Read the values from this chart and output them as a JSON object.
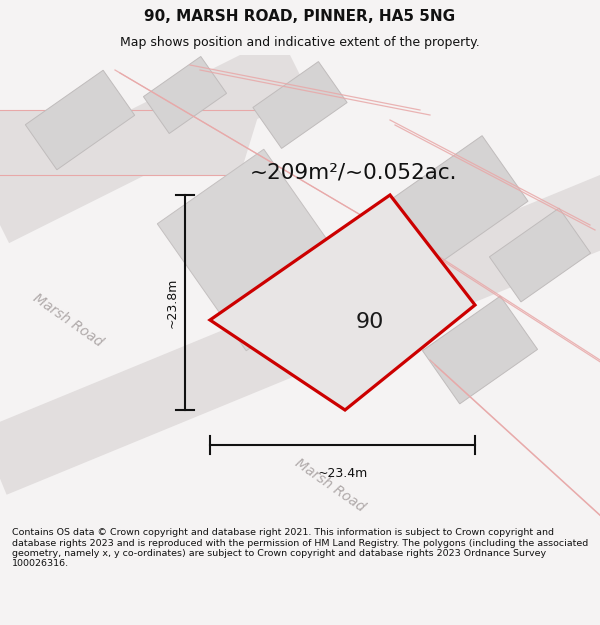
{
  "title": "90, MARSH ROAD, PINNER, HA5 5NG",
  "subtitle": "Map shows position and indicative extent of the property.",
  "area_text": "~209m²/~0.052ac.",
  "property_number": "90",
  "width_label": "~23.4m",
  "height_label": "~23.8m",
  "footer_text": "Contains OS data © Crown copyright and database right 2021. This information is subject to Crown copyright and database rights 2023 and is reproduced with the permission of HM Land Registry. The polygons (including the associated geometry, namely x, y co-ordinates) are subject to Crown copyright and database rights 2023 Ordnance Survey 100026316.",
  "bg_color": "#f5f3f3",
  "map_bg": "#ebebeb",
  "property_outline": "#cc0000",
  "dim_line_color": "#111111",
  "title_color": "#111111",
  "footer_color": "#111111",
  "road_band_color": "#e2dede",
  "building_face": "#d8d6d6",
  "building_edge": "#c0bcbc",
  "pink_line_color": "#e8a8a8",
  "road_label_color": "#b0aaaa",
  "white_bg": "#f5f3f3"
}
